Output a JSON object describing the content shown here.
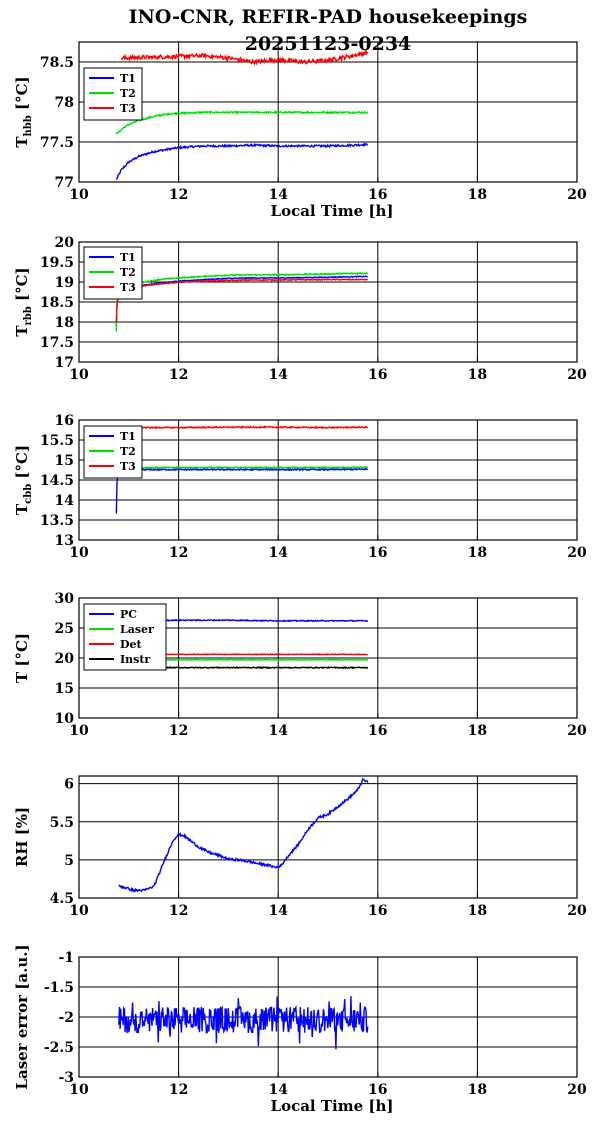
{
  "figure": {
    "title_line1": "INO-CNR, REFIR-PAD housekeepings",
    "title_line2": "20251123-0234"
  },
  "colors": {
    "blue": "#0000ff",
    "green": "#00e000",
    "red": "#ff0000",
    "black": "#000000"
  },
  "chart_data": [
    {
      "id": "tbb-hbb",
      "type": "line",
      "ylabel": "T",
      "ylabel_sub": "hbb",
      "ylabel_unit": "[°C]",
      "xlabel": "Local Time [h]",
      "xlim": [
        10,
        20
      ],
      "ylim": [
        77,
        78.75
      ],
      "xticks": [
        10,
        12,
        14,
        16,
        18,
        20
      ],
      "yticks": [
        77,
        77.5,
        78,
        78.5
      ],
      "yticklabels": [
        "77",
        "77.5",
        "78",
        "78.5"
      ],
      "legend": "top-left",
      "series": [
        {
          "name": "T1",
          "color": "blue",
          "x": [
            10.75,
            10.85,
            11.0,
            11.2,
            11.5,
            11.8,
            12.0,
            12.5,
            13.0,
            13.5,
            14.0,
            14.5,
            15.0,
            15.5,
            15.8
          ],
          "y": [
            77.03,
            77.15,
            77.25,
            77.32,
            77.38,
            77.41,
            77.43,
            77.45,
            77.45,
            77.46,
            77.45,
            77.45,
            77.45,
            77.46,
            77.47
          ],
          "noise": 0.012
        },
        {
          "name": "T2",
          "color": "green",
          "x": [
            10.75,
            10.9,
            11.0,
            11.2,
            11.5,
            11.8,
            12.0,
            12.5,
            13.0,
            14.0,
            15.0,
            15.8
          ],
          "y": [
            77.6,
            77.68,
            77.72,
            77.77,
            77.82,
            77.85,
            77.86,
            77.87,
            77.87,
            77.87,
            77.87,
            77.87
          ],
          "noise": 0.01
        },
        {
          "name": "T3",
          "color": "red",
          "x": [
            10.85,
            11.5,
            12.0,
            12.5,
            13.0,
            13.5,
            14.0,
            14.5,
            15.0,
            15.5,
            15.8
          ],
          "y": [
            78.55,
            78.56,
            78.57,
            78.58,
            78.55,
            78.5,
            78.53,
            78.5,
            78.52,
            78.58,
            78.62
          ],
          "noise": 0.025
        }
      ]
    },
    {
      "id": "tbb-rbb",
      "type": "line",
      "ylabel": "T",
      "ylabel_sub": "rbb",
      "ylabel_unit": "[°C]",
      "xlabel": "",
      "xlim": [
        10,
        20
      ],
      "ylim": [
        17,
        20
      ],
      "xticks": [
        10,
        12,
        14,
        16,
        18,
        20
      ],
      "yticks": [
        17,
        17.5,
        18,
        18.5,
        19,
        19.5,
        20
      ],
      "yticklabels": [
        "17",
        "17.5",
        "18",
        "18.5",
        "19",
        "19.5",
        "20"
      ],
      "legend": "top-left",
      "series": [
        {
          "name": "T1",
          "color": "blue",
          "x": [
            10.75,
            10.76,
            10.8,
            11.0,
            11.3,
            11.6,
            12.0,
            12.5,
            13.0,
            13.5,
            14.0,
            15.0,
            15.8
          ],
          "y": [
            17.9,
            18.4,
            18.75,
            18.85,
            18.92,
            18.97,
            19.02,
            19.06,
            19.09,
            19.1,
            19.1,
            19.12,
            19.14
          ],
          "noise": 0.01
        },
        {
          "name": "T2",
          "color": "green",
          "x": [
            10.75,
            10.76,
            10.8,
            11.0,
            11.3,
            11.6,
            12.0,
            12.5,
            13.0,
            13.5,
            14.0,
            15.0,
            15.8
          ],
          "y": [
            17.75,
            18.5,
            18.8,
            18.92,
            19.0,
            19.06,
            19.1,
            19.14,
            19.17,
            19.18,
            19.18,
            19.2,
            19.22
          ],
          "noise": 0.015
        },
        {
          "name": "T3",
          "color": "red",
          "x": [
            10.75,
            10.76,
            10.8,
            11.0,
            11.3,
            11.6,
            12.0,
            12.5,
            13.0,
            13.5,
            14.0,
            15.0,
            15.8
          ],
          "y": [
            18.0,
            18.4,
            18.7,
            18.82,
            18.9,
            18.95,
            18.99,
            19.02,
            19.04,
            19.05,
            19.05,
            19.06,
            19.06
          ],
          "noise": 0.01
        }
      ]
    },
    {
      "id": "tbb-cbb",
      "type": "line",
      "ylabel": "T",
      "ylabel_sub": "cbb",
      "ylabel_unit": "[°C]",
      "xlabel": "",
      "xlim": [
        10,
        20
      ],
      "ylim": [
        13,
        16
      ],
      "xticks": [
        10,
        12,
        14,
        16,
        18,
        20
      ],
      "yticks": [
        13,
        13.5,
        14,
        14.5,
        15,
        15.5,
        16
      ],
      "yticklabels": [
        "13",
        "13.5",
        "14",
        "14.5",
        "15",
        "15.5",
        "16"
      ],
      "legend": "top-left",
      "series": [
        {
          "name": "T1",
          "color": "blue",
          "x": [
            10.75,
            10.76,
            10.78,
            10.82,
            11.0,
            12.0,
            13.0,
            14.0,
            15.0,
            15.8
          ],
          "y": [
            13.65,
            14.4,
            14.7,
            14.75,
            14.76,
            14.76,
            14.76,
            14.76,
            14.76,
            14.77
          ],
          "noise": 0.015
        },
        {
          "name": "T2",
          "color": "green",
          "x": [
            10.75,
            10.78,
            10.82,
            11.0,
            12.0,
            13.0,
            14.0,
            15.0,
            15.8
          ],
          "y": [
            14.6,
            14.75,
            14.8,
            14.81,
            14.81,
            14.81,
            14.81,
            14.81,
            14.82
          ],
          "noise": 0.015
        },
        {
          "name": "T3",
          "color": "red",
          "x": [
            10.8,
            11.0,
            12.0,
            13.0,
            14.0,
            15.0,
            15.8
          ],
          "y": [
            15.82,
            15.81,
            15.81,
            15.82,
            15.82,
            15.81,
            15.82
          ],
          "noise": 0.015
        }
      ]
    },
    {
      "id": "temps",
      "type": "line",
      "ylabel": "T [°C]",
      "ylabel_sub": "",
      "ylabel_unit": "",
      "xlabel": "",
      "xlim": [
        10,
        20
      ],
      "ylim": [
        10,
        30
      ],
      "xticks": [
        10,
        12,
        14,
        16,
        18,
        20
      ],
      "yticks": [
        10,
        15,
        20,
        25,
        30
      ],
      "yticklabels": [
        "10",
        "15",
        "20",
        "25",
        "30"
      ],
      "legend": "top-left",
      "series": [
        {
          "name": "PC",
          "color": "blue",
          "x": [
            10.8,
            12.0,
            13.0,
            14.0,
            15.0,
            15.8
          ],
          "y": [
            26.2,
            26.3,
            26.3,
            26.2,
            26.2,
            26.2
          ],
          "noise": 0.08
        },
        {
          "name": "Laser",
          "color": "green",
          "x": [
            10.8,
            12.0,
            13.0,
            14.0,
            15.0,
            15.8
          ],
          "y": [
            19.7,
            19.7,
            19.7,
            19.7,
            19.7,
            19.7
          ],
          "noise": 0.05
        },
        {
          "name": "Det",
          "color": "red",
          "x": [
            10.8,
            12.0,
            13.0,
            14.0,
            15.0,
            15.8
          ],
          "y": [
            20.5,
            20.6,
            20.6,
            20.6,
            20.6,
            20.6
          ],
          "noise": 0.06
        },
        {
          "name": "Instr",
          "color": "black",
          "x": [
            10.8,
            12.0,
            13.0,
            14.0,
            15.0,
            15.8
          ],
          "y": [
            18.4,
            18.4,
            18.4,
            18.4,
            18.4,
            18.4
          ],
          "noise": 0.08
        }
      ]
    },
    {
      "id": "rh",
      "type": "line",
      "ylabel": "RH [%]",
      "ylabel_sub": "",
      "ylabel_unit": "",
      "xlabel": "",
      "xlim": [
        10,
        20
      ],
      "ylim": [
        4.5,
        6.1
      ],
      "xticks": [
        10,
        12,
        14,
        16,
        18,
        20
      ],
      "yticks": [
        4.5,
        5,
        5.5,
        6
      ],
      "yticklabels": [
        "4.5",
        "5",
        "5.5",
        "6"
      ],
      "legend": "none",
      "series": [
        {
          "name": "",
          "color": "blue",
          "x": [
            10.8,
            10.95,
            11.1,
            11.3,
            11.5,
            11.6,
            11.7,
            11.8,
            11.9,
            12.0,
            12.1,
            12.2,
            12.4,
            12.6,
            12.8,
            13.0,
            13.2,
            13.4,
            13.6,
            13.8,
            13.95,
            14.05,
            14.2,
            14.4,
            14.6,
            14.8,
            15.0,
            15.2,
            15.4,
            15.6,
            15.7,
            15.8
          ],
          "y": [
            4.66,
            4.63,
            4.6,
            4.6,
            4.65,
            4.8,
            4.97,
            5.12,
            5.27,
            5.33,
            5.32,
            5.27,
            5.17,
            5.1,
            5.06,
            5.01,
            5.0,
            4.98,
            4.95,
            4.93,
            4.9,
            4.92,
            5.05,
            5.2,
            5.4,
            5.55,
            5.6,
            5.7,
            5.8,
            5.92,
            6.05,
            6.02
          ],
          "noise": 0.015
        }
      ]
    },
    {
      "id": "laser-error",
      "type": "line",
      "ylabel": "Laser error [a.u.]",
      "ylabel_sub": "",
      "ylabel_unit": "",
      "xlabel": "Local Time [h]",
      "xlim": [
        10,
        20
      ],
      "ylim": [
        -3,
        -1
      ],
      "xticks": [
        10,
        12,
        14,
        16,
        18,
        20
      ],
      "yticks": [
        -3,
        -2.5,
        -2,
        -1.5,
        -1
      ],
      "yticklabels": [
        "-3",
        "-2.5",
        "-2",
        "-1.5",
        "-1"
      ],
      "legend": "none",
      "series": [
        {
          "name": "",
          "color": "blue",
          "x": [
            10.8,
            15.8
          ],
          "y": [
            -2.05,
            -2.05
          ],
          "noise": 0.22
        }
      ]
    }
  ]
}
